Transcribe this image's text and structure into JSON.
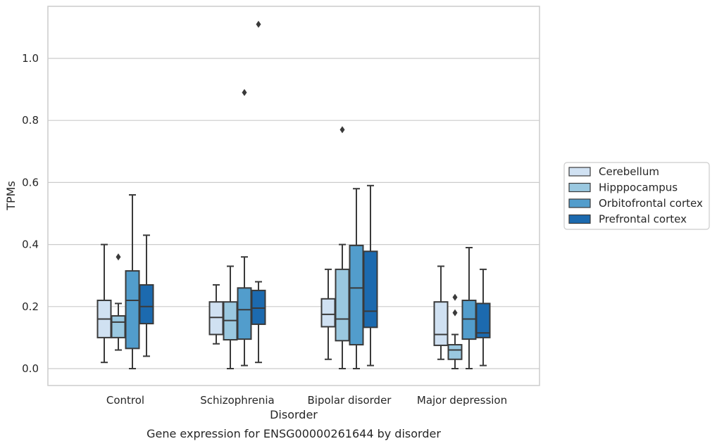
{
  "chart_data": {
    "type": "boxplot",
    "title": "Gene expression for ENSG00000261644 by disorder",
    "xlabel": "Disorder",
    "ylabel": "TPMs",
    "ylim": [
      -0.053,
      1.17
    ],
    "yticks": [
      "0.0",
      "0.2",
      "0.4",
      "0.6",
      "0.8",
      "1.0"
    ],
    "grid": "horizontal",
    "legend_position": "right",
    "categories": [
      "Control",
      "Schizophrenia",
      "Bipolar disorder",
      "Major depression"
    ],
    "series": [
      {
        "name": "Cerebellum",
        "color": "#d0e1f2",
        "boxes": [
          {
            "whisker_low": 0.02,
            "q1": 0.1,
            "median": 0.16,
            "q3": 0.22,
            "whisker_high": 0.4,
            "outliers": []
          },
          {
            "whisker_low": 0.08,
            "q1": 0.11,
            "median": 0.165,
            "q3": 0.215,
            "whisker_high": 0.27,
            "outliers": []
          },
          {
            "whisker_low": 0.03,
            "q1": 0.135,
            "median": 0.175,
            "q3": 0.225,
            "whisker_high": 0.32,
            "outliers": []
          },
          {
            "whisker_low": 0.03,
            "q1": 0.075,
            "median": 0.11,
            "q3": 0.215,
            "whisker_high": 0.33,
            "outliers": []
          }
        ]
      },
      {
        "name": "Hipppocampus",
        "color": "#9ac8e0",
        "boxes": [
          {
            "whisker_low": 0.06,
            "q1": 0.1,
            "median": 0.15,
            "q3": 0.17,
            "whisker_high": 0.21,
            "outliers": [
              0.36
            ]
          },
          {
            "whisker_low": 0.0,
            "q1": 0.093,
            "median": 0.155,
            "q3": 0.215,
            "whisker_high": 0.33,
            "outliers": []
          },
          {
            "whisker_low": 0.0,
            "q1": 0.09,
            "median": 0.16,
            "q3": 0.32,
            "whisker_high": 0.4,
            "outliers": [
              0.77
            ]
          },
          {
            "whisker_low": 0.0,
            "q1": 0.03,
            "median": 0.06,
            "q3": 0.077,
            "whisker_high": 0.11,
            "outliers": [
              0.18,
              0.23
            ]
          }
        ]
      },
      {
        "name": "Orbitofrontal cortex",
        "color": "#529dcc",
        "boxes": [
          {
            "whisker_low": 0.0,
            "q1": 0.065,
            "median": 0.22,
            "q3": 0.315,
            "whisker_high": 0.56,
            "outliers": []
          },
          {
            "whisker_low": 0.01,
            "q1": 0.095,
            "median": 0.19,
            "q3": 0.26,
            "whisker_high": 0.36,
            "outliers": [
              0.89
            ]
          },
          {
            "whisker_low": 0.0,
            "q1": 0.077,
            "median": 0.26,
            "q3": 0.397,
            "whisker_high": 0.58,
            "outliers": []
          },
          {
            "whisker_low": 0.0,
            "q1": 0.095,
            "median": 0.16,
            "q3": 0.22,
            "whisker_high": 0.39,
            "outliers": []
          }
        ]
      },
      {
        "name": "Prefrontal cortex",
        "color": "#1c6aaf",
        "boxes": [
          {
            "whisker_low": 0.04,
            "q1": 0.145,
            "median": 0.2,
            "q3": 0.27,
            "whisker_high": 0.43,
            "outliers": []
          },
          {
            "whisker_low": 0.02,
            "q1": 0.143,
            "median": 0.195,
            "q3": 0.252,
            "whisker_high": 0.28,
            "outliers": [
              1.11
            ]
          },
          {
            "whisker_low": 0.01,
            "q1": 0.133,
            "median": 0.185,
            "q3": 0.378,
            "whisker_high": 0.59,
            "outliers": []
          },
          {
            "whisker_low": 0.01,
            "q1": 0.1,
            "median": 0.115,
            "q3": 0.21,
            "whisker_high": 0.32,
            "outliers": []
          }
        ]
      }
    ]
  }
}
